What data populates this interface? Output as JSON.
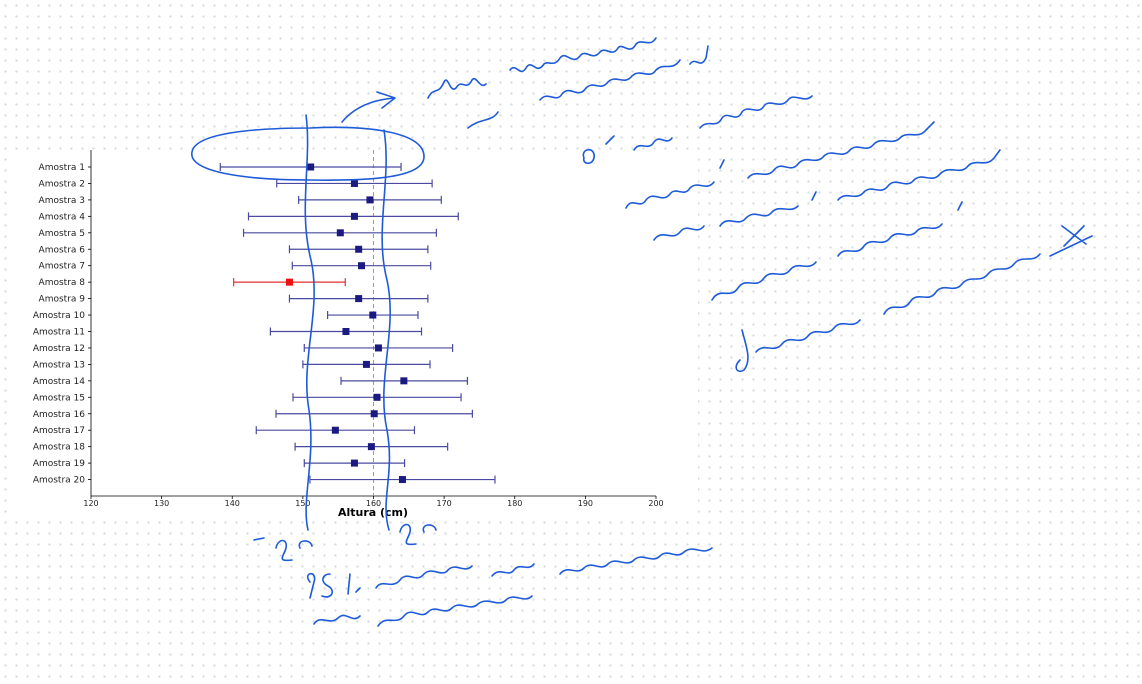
{
  "chart_data": {
    "type": "scatter",
    "subtype": "confidence-interval-plot",
    "title": "",
    "xlabel": "Altura (cm)",
    "ylabel": "",
    "xlim": [
      120,
      200
    ],
    "xticks": [
      120,
      130,
      140,
      150,
      160,
      170,
      180,
      190,
      200
    ],
    "reference_line": {
      "x": 160,
      "style": "dashed",
      "color": "#9a9aaa"
    },
    "grid": false,
    "colors": {
      "normal": "#1a1a80",
      "highlight": "#ee1111",
      "error_bar": "#4a4aa0",
      "error_bar_highlight": "#e03030"
    },
    "categories": [
      "Amostra 1",
      "Amostra 2",
      "Amostra 3",
      "Amostra 4",
      "Amostra 5",
      "Amostra 6",
      "Amostra 7",
      "Amostra 8",
      "Amostra 9",
      "Amostra 10",
      "Amostra 11",
      "Amostra 12",
      "Amostra 13",
      "Amostra 14",
      "Amostra 15",
      "Amostra 16",
      "Amostra 17",
      "Amostra 18",
      "Amostra 19",
      "Amostra 20"
    ],
    "means": [
      151.1,
      157.3,
      159.5,
      157.3,
      155.3,
      157.9,
      158.3,
      148.1,
      157.9,
      159.9,
      156.1,
      160.7,
      159.0,
      164.3,
      160.5,
      160.1,
      154.6,
      159.7,
      157.3,
      164.1
    ],
    "lower": [
      138.3,
      146.3,
      149.4,
      142.3,
      141.6,
      148.1,
      148.5,
      140.2,
      148.1,
      153.5,
      145.4,
      150.2,
      150.0,
      155.4,
      148.6,
      146.2,
      143.4,
      148.9,
      150.2,
      151.0
    ],
    "upper": [
      163.9,
      168.3,
      169.6,
      172.0,
      168.9,
      167.7,
      168.1,
      156.0,
      167.7,
      166.3,
      166.8,
      171.2,
      168.0,
      173.3,
      172.4,
      174.0,
      165.8,
      170.5,
      164.4,
      177.2
    ],
    "highlighted": [
      8
    ]
  },
  "annotations": {
    "handwritten_right": "nota que a amostra 1 o ou lado uma \"amostra\" ou seja \"vários valores que tem média x\"",
    "handwritten_minus": "- 2c",
    "handwritten_plus": "2c",
    "handwritten_bottom": "95% chance de pegar a média"
  }
}
